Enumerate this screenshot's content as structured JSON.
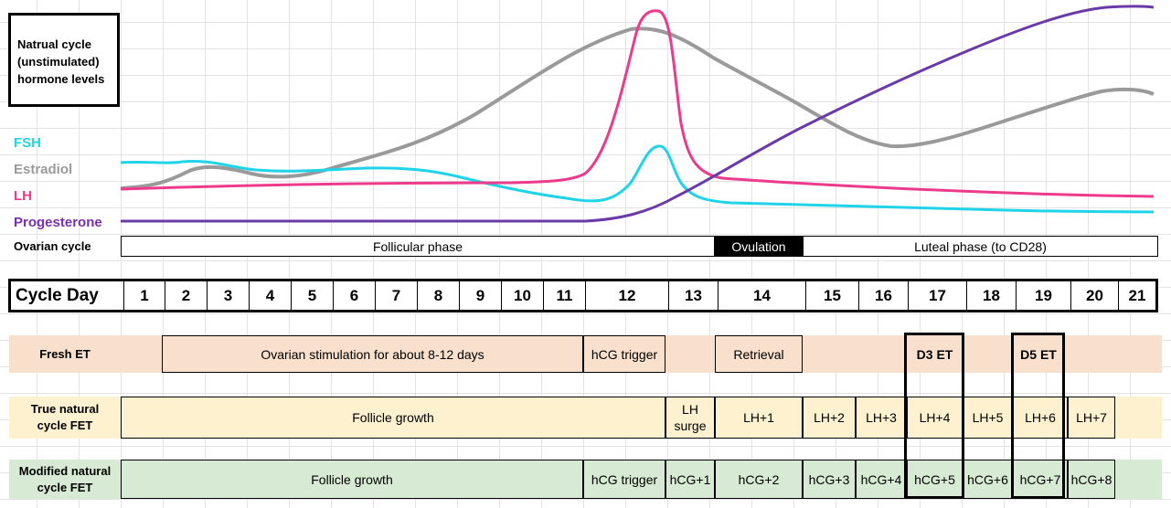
{
  "title": "Natrual cycle\n(unstimulated)\nhormone levels",
  "legend": [
    {
      "label": "FSH",
      "color": "#1fd3e8"
    },
    {
      "label": "Estradiol",
      "color": "#9a9a9a"
    },
    {
      "label": "LH",
      "color": "#ee3a8c"
    },
    {
      "label": "Progesterone",
      "color": "#7a2fb0"
    }
  ],
  "ovarian": {
    "label": "Ovarian cycle",
    "follicular": "Follicular phase",
    "ovulation": "Ovulation",
    "luteal": "Luteal phase (to CD28)"
  },
  "cycle_day": {
    "label": "Cycle Day",
    "days": [
      "1",
      "2",
      "3",
      "4",
      "5",
      "6",
      "7",
      "8",
      "9",
      "10",
      "11",
      "12",
      "13",
      "14",
      "15",
      "16",
      "17",
      "18",
      "19",
      "20",
      "21"
    ]
  },
  "fresh": {
    "label": "Fresh ET",
    "stim": "Ovarian stimulation for about 8-12 days",
    "trigger": "hCG trigger",
    "retrieval": "Retrieval",
    "d3": "D3 ET",
    "d5": "D5 ET"
  },
  "true_natural": {
    "label": "True natural cycle FET",
    "growth": "Follicle growth",
    "surge": "LH surge",
    "items": [
      "LH+1",
      "LH+2",
      "LH+3",
      "LH+4",
      "LH+5",
      "LH+6",
      "LH+7"
    ]
  },
  "modified": {
    "label": "Modified natural cycle FET",
    "growth": "Follicle growth",
    "trigger": "hCG trigger",
    "items": [
      "hCG+1",
      "hCG+2",
      "hCG+3",
      "hCG+4",
      "hCG+5",
      "hCG+6",
      "hCG+7",
      "hCG+8"
    ]
  },
  "colors": {
    "fresh_bg": "#f9e0cc",
    "true_bg": "#fdf1cf",
    "modified_bg": "#d7ead3"
  }
}
